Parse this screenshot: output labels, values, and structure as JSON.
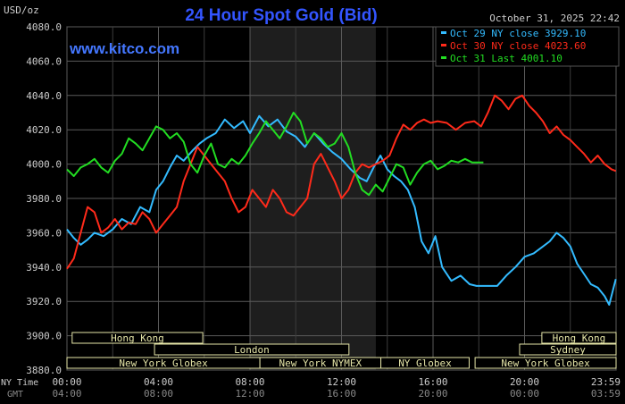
{
  "header": {
    "unit": "USD/oz",
    "title": "24 Hour Spot Gold (Bid)",
    "datetime": "October 31, 2025 22:42",
    "site": "www.kitco.com"
  },
  "colors": {
    "oct29": "#33bbff",
    "oct30": "#ff2a1a",
    "oct31": "#22dd22",
    "title": "#3355ff",
    "site": "#4477ff",
    "session_text": "#e6e6a8",
    "session_border": "#e6e6a8",
    "nymex_band": "#1e1e1e"
  },
  "time_axis": {
    "ny_label": "NY Time",
    "gmt_label": "GMT",
    "ny_ticks": [
      "00:00",
      "04:00",
      "08:00",
      "12:00",
      "16:00",
      "20:00",
      "23:59"
    ],
    "gmt_ticks": [
      "04:00",
      "08:00",
      "12:00",
      "16:00",
      "20:00",
      "00:00",
      "03:59"
    ]
  },
  "sessions": [
    {
      "label": "Hong Kong",
      "start": 0.35,
      "end": 9.15
    },
    {
      "label": "London",
      "start": 5.9,
      "end": 19.0
    },
    {
      "label": "New York Globex",
      "start": 0.0,
      "end": 13.0
    },
    {
      "label": "New York NYMEX",
      "start": 13.0,
      "end": 21.15
    },
    {
      "label": "NY Globex",
      "start": 21.15,
      "end": 27.1
    },
    {
      "label": "New York Globex",
      "start": 27.5,
      "end": 37.0
    },
    {
      "label": "Hong Kong",
      "start": 32.0,
      "end": 37.0
    },
    {
      "label": "Sydney",
      "start": 30.5,
      "end": 37.0
    }
  ],
  "chart_data": {
    "type": "line",
    "xlabel": "",
    "ylabel": "USD/oz",
    "x_unit": "hour (NY Time)",
    "xlim": [
      0,
      24
    ],
    "ylim": [
      3880,
      4080
    ],
    "y_ticks": [
      3880.0,
      3900.0,
      3920.0,
      3940.0,
      3960.0,
      3980.0,
      4000.0,
      4020.0,
      4040.0,
      4060.0,
      4080.0
    ],
    "grid": true,
    "legend": "top-right",
    "nymex_band": [
      8.0,
      13.5
    ],
    "series": [
      {
        "name": "Oct 29 NY close 3929.10",
        "x": [
          0.0,
          0.3,
          0.6,
          0.9,
          1.2,
          1.6,
          2.0,
          2.4,
          2.8,
          3.2,
          3.6,
          3.9,
          4.2,
          4.5,
          4.8,
          5.1,
          5.5,
          5.8,
          6.1,
          6.5,
          6.9,
          7.3,
          7.7,
          8.0,
          8.4,
          8.8,
          9.2,
          9.6,
          10.0,
          10.4,
          10.8,
          11.2,
          11.6,
          12.0,
          12.4,
          12.8,
          13.1,
          13.4,
          13.7,
          14.0,
          14.3,
          14.6,
          14.9,
          15.2,
          15.5,
          15.8,
          16.1,
          16.4,
          16.8,
          17.2,
          17.6,
          17.9,
          18.2,
          18.5,
          18.8,
          19.2,
          19.6,
          20.0,
          20.4,
          20.8,
          21.1,
          21.4,
          21.7,
          22.0,
          22.3,
          22.6,
          22.9,
          23.2,
          23.5,
          23.7,
          23.99
        ],
        "y": [
          3962,
          3957,
          3953,
          3956,
          3960,
          3958,
          3962,
          3968,
          3965,
          3975,
          3972,
          3985,
          3990,
          3998,
          4005,
          4002,
          4008,
          4012,
          4015,
          4018,
          4026,
          4021,
          4025,
          4018,
          4028,
          4022,
          4026,
          4019,
          4016,
          4010,
          4018,
          4012,
          4007,
          4003,
          3997,
          3992,
          3990,
          3998,
          4005,
          3997,
          3993,
          3990,
          3985,
          3975,
          3955,
          3948,
          3958,
          3940,
          3932,
          3935,
          3930,
          3929,
          3929,
          3929,
          3929,
          3935,
          3940,
          3946,
          3948,
          3952,
          3955,
          3960,
          3957,
          3952,
          3942,
          3936,
          3930,
          3928,
          3923,
          3918,
          3933
        ]
      },
      {
        "name": "Oct 30 NY close 4023.60",
        "x": [
          0.0,
          0.3,
          0.6,
          0.9,
          1.2,
          1.5,
          1.8,
          2.1,
          2.4,
          2.7,
          3.0,
          3.3,
          3.6,
          3.9,
          4.2,
          4.5,
          4.8,
          5.1,
          5.4,
          5.7,
          6.0,
          6.3,
          6.6,
          6.9,
          7.2,
          7.5,
          7.8,
          8.1,
          8.4,
          8.7,
          9.0,
          9.3,
          9.6,
          9.9,
          10.2,
          10.5,
          10.8,
          11.1,
          11.4,
          11.7,
          12.0,
          12.3,
          12.6,
          12.9,
          13.2,
          13.5,
          13.8,
          14.1,
          14.4,
          14.7,
          15.0,
          15.3,
          15.6,
          15.9,
          16.2,
          16.6,
          17.0,
          17.4,
          17.8,
          18.1,
          18.4,
          18.7,
          19.0,
          19.3,
          19.6,
          19.9,
          20.2,
          20.5,
          20.8,
          21.1,
          21.4,
          21.7,
          22.0,
          22.3,
          22.6,
          22.9,
          23.2,
          23.5,
          23.8,
          23.99
        ],
        "y": [
          3939,
          3945,
          3960,
          3975,
          3972,
          3960,
          3963,
          3968,
          3962,
          3966,
          3965,
          3972,
          3968,
          3960,
          3965,
          3970,
          3975,
          3990,
          4000,
          4010,
          4005,
          4000,
          3995,
          3990,
          3980,
          3972,
          3975,
          3985,
          3980,
          3975,
          3985,
          3980,
          3972,
          3970,
          3975,
          3980,
          4000,
          4006,
          3998,
          3990,
          3980,
          3985,
          3995,
          4000,
          3998,
          4000,
          4002,
          4005,
          4015,
          4023,
          4020,
          4024,
          4026,
          4024,
          4025,
          4024,
          4020,
          4024,
          4025,
          4022,
          4030,
          4040,
          4037,
          4032,
          4038,
          4040,
          4034,
          4030,
          4025,
          4018,
          4022,
          4017,
          4014,
          4010,
          4006,
          4001,
          4005,
          4000,
          3997,
          3996
        ]
      },
      {
        "name": "Oct 31 Last 4001.10",
        "x": [
          0.0,
          0.3,
          0.6,
          0.9,
          1.2,
          1.5,
          1.8,
          2.1,
          2.4,
          2.7,
          3.0,
          3.3,
          3.6,
          3.9,
          4.2,
          4.5,
          4.8,
          5.1,
          5.4,
          5.7,
          6.0,
          6.3,
          6.6,
          6.9,
          7.2,
          7.5,
          7.8,
          8.1,
          8.4,
          8.7,
          9.0,
          9.3,
          9.6,
          9.9,
          10.2,
          10.5,
          10.8,
          11.1,
          11.4,
          11.7,
          12.0,
          12.3,
          12.6,
          12.9,
          13.2,
          13.5,
          13.8,
          14.1,
          14.4,
          14.7,
          15.0,
          15.3,
          15.6,
          15.9,
          16.2,
          16.5,
          16.8,
          17.1,
          17.4,
          17.7,
          18.0,
          18.2
        ],
        "y": [
          3997,
          3993,
          3998,
          4000,
          4003,
          3998,
          3995,
          4002,
          4006,
          4015,
          4012,
          4008,
          4015,
          4022,
          4020,
          4015,
          4018,
          4013,
          4000,
          3995,
          4005,
          4012,
          4000,
          3998,
          4003,
          4000,
          4005,
          4012,
          4018,
          4025,
          4020,
          4015,
          4022,
          4030,
          4025,
          4012,
          4018,
          4015,
          4010,
          4012,
          4018,
          4010,
          3995,
          3985,
          3982,
          3988,
          3984,
          3992,
          4000,
          3998,
          3988,
          3995,
          4000,
          4002,
          3997,
          3999,
          4002,
          4001,
          4003,
          4001,
          4001,
          4001
        ]
      }
    ]
  }
}
